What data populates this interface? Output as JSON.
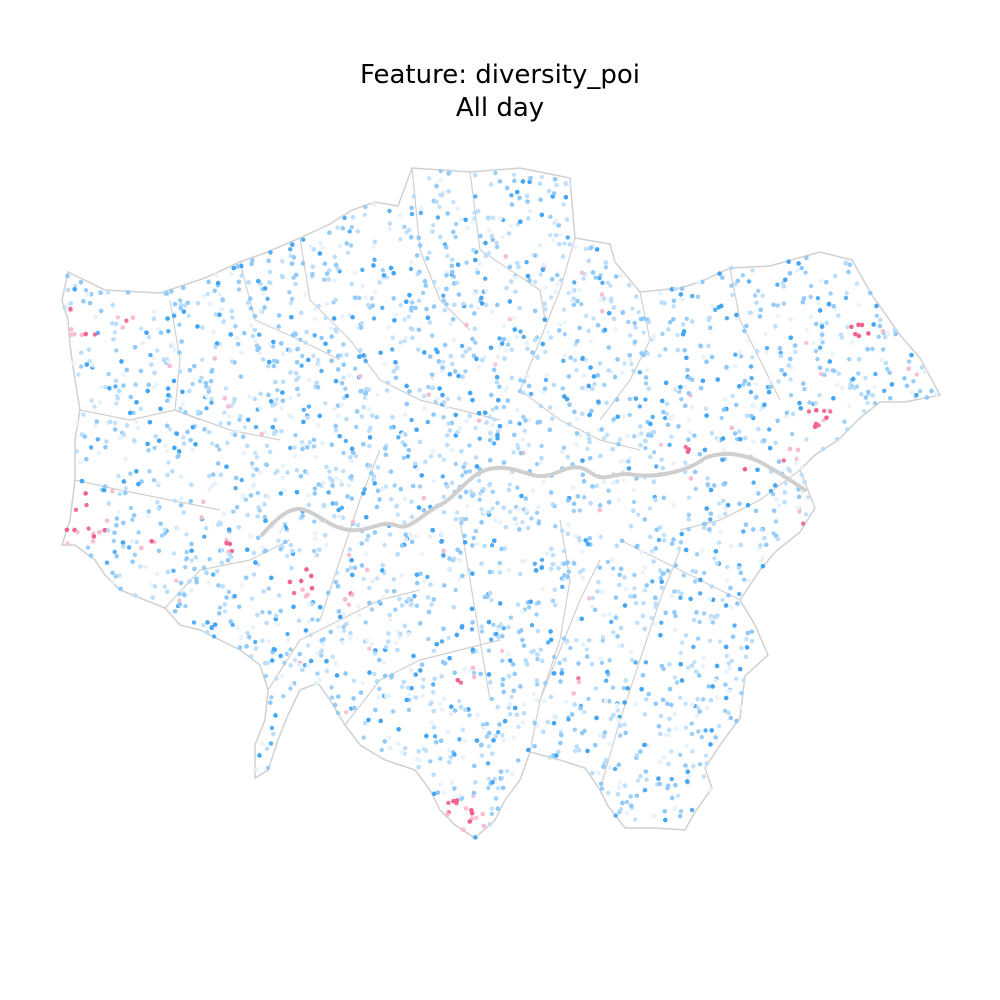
{
  "figure": {
    "title_line_1": "Feature: diversity_poi",
    "title_line_2": "All day"
  },
  "map": {
    "region": "Greater London",
    "style": "point-density scatter over borough boundaries",
    "colors": {
      "low_pink_strong": "#f06292",
      "low_pink_light": "#f8bbd0",
      "neutral": "#e8f2fb",
      "high_blue_light": "#bbdefb",
      "high_blue_mid": "#90caf9",
      "high_blue_strong": "#42a5f5",
      "boundary": "#d0d0d0",
      "river": "#cfcfcf"
    },
    "legend": "none",
    "axes": "hidden"
  }
}
